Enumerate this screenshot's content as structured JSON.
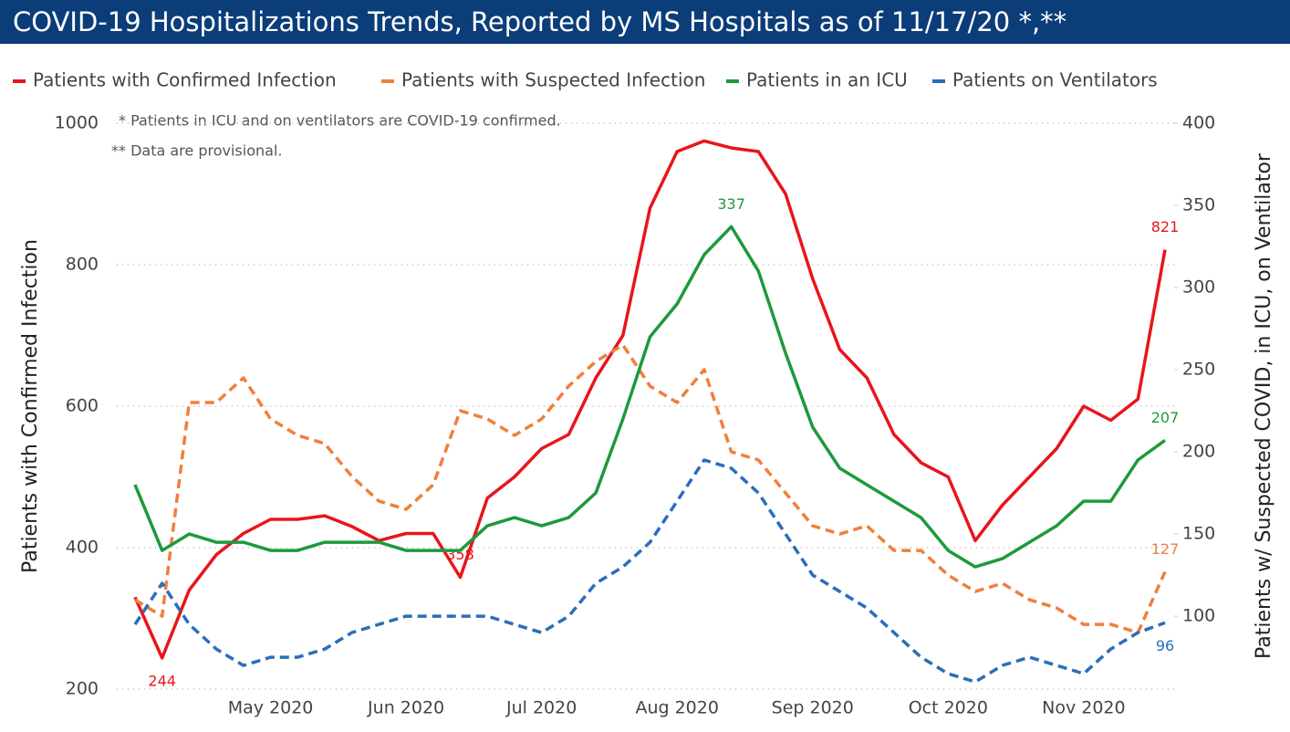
{
  "chart_data": {
    "type": "line",
    "title": "COVID-19 Hospitalizations Trends, Reported by MS Hospitals as of 11/17/20 *,**",
    "annotations": [
      "* Patients in ICU and on ventilators are COVID-19 confirmed.",
      "** Data are provisional."
    ],
    "y_label": "Patients with Confirmed Infection",
    "y2_label": "Patients w/ Suspected COVID, in ICU, on Ventilator",
    "categories": [
      null,
      null,
      null,
      null,
      null,
      "May 2020",
      null,
      null,
      null,
      null,
      "Jun 2020",
      null,
      null,
      null,
      null,
      "Jul 2020",
      null,
      null,
      null,
      null,
      "Aug 2020",
      null,
      null,
      null,
      null,
      "Sep 2020",
      null,
      null,
      null,
      null,
      "Oct 2020",
      null,
      null,
      null,
      null,
      "Nov 2020",
      null,
      null,
      null
    ],
    "ylim": [
      200,
      1000
    ],
    "yticks": [
      200,
      400,
      600,
      800,
      1000
    ],
    "y2lim": [
      55.6,
      400
    ],
    "y2ticks": [
      100,
      150,
      200,
      250,
      300,
      350,
      400
    ],
    "grid": true,
    "legend": "top",
    "series": [
      {
        "name": "Patients with Confirmed Infection",
        "color": "#e8151b",
        "dashed": false,
        "values": [
          330,
          244,
          340,
          390,
          420,
          440,
          440,
          445,
          430,
          410,
          420,
          420,
          358,
          470,
          500,
          540,
          560,
          640,
          700,
          880,
          960,
          975,
          965,
          960,
          900,
          780,
          680,
          640,
          560,
          520,
          500,
          410,
          460,
          500,
          540,
          600,
          580,
          610,
          821
        ],
        "value_labels": [
          null,
          "244",
          null,
          null,
          null,
          null,
          null,
          null,
          null,
          null,
          null,
          null,
          "358",
          null,
          null,
          null,
          null,
          null,
          null,
          null,
          null,
          null,
          null,
          null,
          null,
          null,
          null,
          null,
          null,
          null,
          null,
          null,
          null,
          null,
          null,
          null,
          null,
          null,
          "821"
        ]
      },
      {
        "name": "Patients with Suspected Infection",
        "color": "#f07f3c",
        "dashed": true,
        "axis": "y2",
        "values": [
          110,
          100,
          230,
          230,
          245,
          220,
          210,
          205,
          185,
          170,
          165,
          180,
          225,
          220,
          210,
          220,
          240,
          255,
          265,
          240,
          230,
          250,
          200,
          195,
          175,
          155,
          150,
          155,
          140,
          140,
          125,
          115,
          120,
          110,
          105,
          95,
          95,
          90,
          127
        ],
        "value_labels": [
          null,
          null,
          null,
          null,
          null,
          null,
          null,
          null,
          null,
          null,
          null,
          null,
          null,
          null,
          null,
          null,
          null,
          null,
          null,
          null,
          null,
          null,
          null,
          null,
          null,
          null,
          null,
          null,
          null,
          null,
          null,
          null,
          null,
          null,
          null,
          null,
          null,
          null,
          "127"
        ]
      },
      {
        "name": "Patients in an ICU",
        "color": "#1d9a3c",
        "dashed": false,
        "axis": "y2",
        "values": [
          180,
          140,
          150,
          145,
          145,
          140,
          140,
          145,
          145,
          145,
          140,
          140,
          140,
          155,
          160,
          155,
          160,
          175,
          220,
          270,
          290,
          320,
          337,
          310,
          260,
          215,
          190,
          180,
          170,
          160,
          140,
          130,
          135,
          145,
          155,
          170,
          170,
          195,
          207
        ],
        "value_labels": [
          null,
          null,
          null,
          null,
          null,
          null,
          null,
          null,
          null,
          null,
          null,
          null,
          null,
          null,
          null,
          null,
          null,
          null,
          null,
          null,
          null,
          null,
          "337",
          null,
          null,
          null,
          null,
          null,
          null,
          null,
          null,
          null,
          null,
          null,
          null,
          null,
          null,
          null,
          "207"
        ]
      },
      {
        "name": "Patients on Ventilators",
        "color": "#2a6ebb",
        "dashed": true,
        "axis": "y2",
        "values": [
          95,
          120,
          95,
          80,
          70,
          75,
          75,
          80,
          90,
          95,
          100,
          100,
          100,
          100,
          95,
          90,
          100,
          120,
          130,
          145,
          170,
          195,
          190,
          175,
          150,
          125,
          115,
          105,
          90,
          75,
          65,
          60,
          70,
          75,
          70,
          65,
          80,
          90,
          96
        ],
        "value_labels": [
          null,
          null,
          null,
          null,
          null,
          null,
          null,
          null,
          null,
          null,
          null,
          null,
          null,
          null,
          null,
          null,
          null,
          null,
          null,
          null,
          null,
          null,
          null,
          null,
          null,
          null,
          null,
          null,
          null,
          null,
          null,
          null,
          null,
          null,
          null,
          null,
          null,
          null,
          "96"
        ]
      }
    ]
  }
}
